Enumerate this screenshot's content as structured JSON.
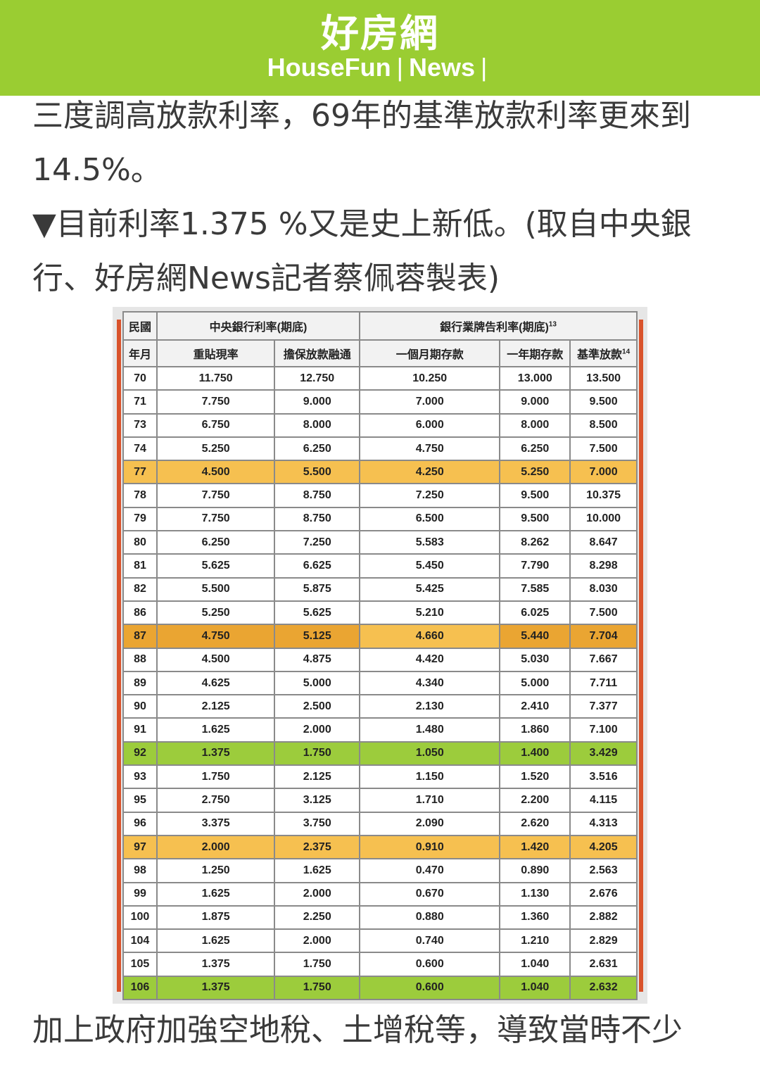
{
  "header": {
    "logo_cn": "好房網",
    "logo_en": "HouseFun",
    "logo_sep": "|",
    "logo_news": "News",
    "logo_end": "|"
  },
  "article": {
    "para1": "三度調高放款利率，69年的基準放款利率更來到14.5%。",
    "para2": "▼目前利率1.375 %又是史上新低。(取自中央銀行、好房網News記者蔡佩蓉製表)",
    "para3": "加上政府加強空地稅、土增稅等，導致當時不少"
  },
  "table": {
    "header_row1": {
      "col_year": "民國",
      "group_cb": "中央銀行利率(期底)",
      "group_bank": "銀行業牌告利率(期底)",
      "group_bank_sup": "13"
    },
    "header_row2": {
      "col_year": "年月",
      "rediscount": "重貼現率",
      "secured": "擔保放款融通",
      "one_month": "一個月期存款",
      "one_year": "一年期存款",
      "base_rate": "基準放款",
      "base_rate_sup": "14"
    },
    "rows": [
      {
        "y": "70",
        "a": "11.750",
        "b": "12.750",
        "c": "10.250",
        "d": "13.000",
        "e": "13.500",
        "hl": ""
      },
      {
        "y": "71",
        "a": "7.750",
        "b": "9.000",
        "c": "7.000",
        "d": "9.000",
        "e": "9.500",
        "hl": ""
      },
      {
        "y": "73",
        "a": "6.750",
        "b": "8.000",
        "c": "6.000",
        "d": "8.000",
        "e": "8.500",
        "hl": ""
      },
      {
        "y": "74",
        "a": "5.250",
        "b": "6.250",
        "c": "4.750",
        "d": "6.250",
        "e": "7.500",
        "hl": ""
      },
      {
        "y": "77",
        "a": "4.500",
        "b": "5.500",
        "c": "4.250",
        "d": "5.250",
        "e": "7.000",
        "hl": "orange"
      },
      {
        "y": "78",
        "a": "7.750",
        "b": "8.750",
        "c": "7.250",
        "d": "9.500",
        "e": "10.375",
        "hl": ""
      },
      {
        "y": "79",
        "a": "7.750",
        "b": "8.750",
        "c": "6.500",
        "d": "9.500",
        "e": "10.000",
        "hl": ""
      },
      {
        "y": "80",
        "a": "6.250",
        "b": "7.250",
        "c": "5.583",
        "d": "8.262",
        "e": "8.647",
        "hl": ""
      },
      {
        "y": "81",
        "a": "5.625",
        "b": "6.625",
        "c": "5.450",
        "d": "7.790",
        "e": "8.298",
        "hl": ""
      },
      {
        "y": "82",
        "a": "5.500",
        "b": "5.875",
        "c": "5.425",
        "d": "7.585",
        "e": "8.030",
        "hl": ""
      },
      {
        "y": "86",
        "a": "5.250",
        "b": "5.625",
        "c": "5.210",
        "d": "6.025",
        "e": "7.500",
        "hl": ""
      },
      {
        "y": "87",
        "a": "4.750",
        "b": "5.125",
        "c": "4.660",
        "d": "5.440",
        "e": "7.704",
        "hl": "orange-dark"
      },
      {
        "y": "88",
        "a": "4.500",
        "b": "4.875",
        "c": "4.420",
        "d": "5.030",
        "e": "7.667",
        "hl": ""
      },
      {
        "y": "89",
        "a": "4.625",
        "b": "5.000",
        "c": "4.340",
        "d": "5.000",
        "e": "7.711",
        "hl": ""
      },
      {
        "y": "90",
        "a": "2.125",
        "b": "2.500",
        "c": "2.130",
        "d": "2.410",
        "e": "7.377",
        "hl": ""
      },
      {
        "y": "91",
        "a": "1.625",
        "b": "2.000",
        "c": "1.480",
        "d": "1.860",
        "e": "7.100",
        "hl": ""
      },
      {
        "y": "92",
        "a": "1.375",
        "b": "1.750",
        "c": "1.050",
        "d": "1.400",
        "e": "3.429",
        "hl": "green"
      },
      {
        "y": "93",
        "a": "1.750",
        "b": "2.125",
        "c": "1.150",
        "d": "1.520",
        "e": "3.516",
        "hl": ""
      },
      {
        "y": "95",
        "a": "2.750",
        "b": "3.125",
        "c": "1.710",
        "d": "2.200",
        "e": "4.115",
        "hl": ""
      },
      {
        "y": "96",
        "a": "3.375",
        "b": "3.750",
        "c": "2.090",
        "d": "2.620",
        "e": "4.313",
        "hl": ""
      },
      {
        "y": "97",
        "a": "2.000",
        "b": "2.375",
        "c": "0.910",
        "d": "1.420",
        "e": "4.205",
        "hl": "orange"
      },
      {
        "y": "98",
        "a": "1.250",
        "b": "1.625",
        "c": "0.470",
        "d": "0.890",
        "e": "2.563",
        "hl": ""
      },
      {
        "y": "99",
        "a": "1.625",
        "b": "2.000",
        "c": "0.670",
        "d": "1.130",
        "e": "2.676",
        "hl": ""
      },
      {
        "y": "100",
        "a": "1.875",
        "b": "2.250",
        "c": "0.880",
        "d": "1.360",
        "e": "2.882",
        "hl": ""
      },
      {
        "y": "104",
        "a": "1.625",
        "b": "2.000",
        "c": "0.740",
        "d": "1.210",
        "e": "2.829",
        "hl": ""
      },
      {
        "y": "105",
        "a": "1.375",
        "b": "1.750",
        "c": "0.600",
        "d": "1.040",
        "e": "2.631",
        "hl": ""
      },
      {
        "y": "106",
        "a": "1.375",
        "b": "1.750",
        "c": "0.600",
        "d": "1.040",
        "e": "2.632",
        "hl": "green"
      }
    ]
  },
  "colors": {
    "brand_green": "#9acd32",
    "highlight_orange": "#f6c050",
    "highlight_green": "#9ccc3c",
    "frame_red": "#d9532c"
  }
}
